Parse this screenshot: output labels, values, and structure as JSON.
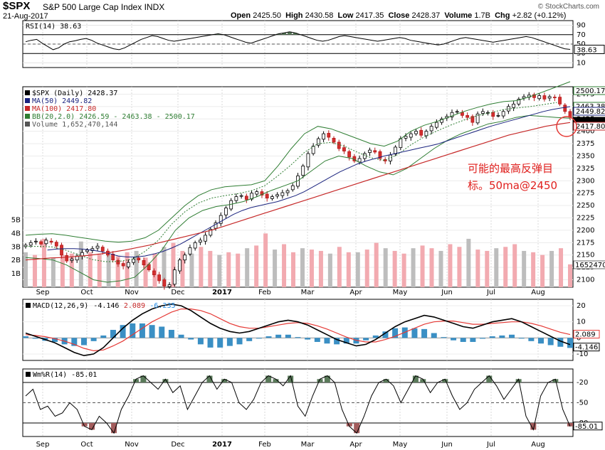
{
  "header": {
    "symbol": "$SPX",
    "name": "S&P 500 Large Cap Index",
    "exchange": "INDX",
    "date": "21-Aug-2017",
    "open_label": "Open",
    "open": "2425.50",
    "high_label": "High",
    "high": "2430.58",
    "low_label": "Low",
    "low": "2417.35",
    "close_label": "Close",
    "close": "2428.37",
    "volume_label": "Volume",
    "volume": "1.7B",
    "chg_label": "Chg",
    "chg": "+2.82 (+0.12%)",
    "logo": "© StockCharts.com"
  },
  "chart_data": [
    {
      "type": "line",
      "name": "RSI(14)",
      "title": "RSI(14) 38.63",
      "last": "38.63",
      "y_ticks": [
        "90",
        "70",
        "50",
        "30",
        "10"
      ],
      "ylim": [
        0,
        100
      ],
      "overbought": 70,
      "oversold": 30,
      "values": [
        55,
        58,
        60,
        52,
        45,
        38,
        42,
        50,
        55,
        57,
        60,
        62,
        58,
        52,
        48,
        44,
        40,
        38,
        42,
        48,
        54,
        60,
        64,
        68,
        66,
        62,
        58,
        56,
        58,
        60,
        62,
        64,
        66,
        68,
        70,
        72,
        70,
        66,
        62,
        58,
        54,
        52,
        56,
        60,
        64,
        68,
        72,
        74,
        76,
        74,
        70,
        66,
        62,
        58,
        56,
        58,
        62,
        66,
        68,
        66,
        64,
        62,
        60,
        58,
        56,
        58,
        60,
        62,
        64,
        62,
        58,
        56,
        54,
        52,
        50,
        48,
        50,
        54,
        58,
        62,
        64,
        62,
        60,
        58,
        56,
        54,
        56,
        58,
        60,
        62,
        64,
        66,
        64,
        60,
        56,
        52,
        48,
        44,
        40,
        38.63
      ]
    },
    {
      "type": "candlestick",
      "name": "$SPX (Daily)",
      "legend": [
        "$SPX (Daily) 2428.37",
        "MA(50) 2449.82",
        "MA(100) 2417.80",
        "BB(20,2.0) 2426.59 - 2463.38 - 2500.17",
        "Volume 1,652,470,144"
      ],
      "legend_colors": [
        "#000000",
        "#1a237e",
        "#c62828",
        "#2e7d32",
        "#555555"
      ],
      "x_labels": [
        "Sep",
        "Oct",
        "Nov",
        "Dec",
        "2017",
        "Feb",
        "Mar",
        "Apr",
        "May",
        "Jun",
        "Jul",
        "Aug"
      ],
      "y_ticks": [
        "2475",
        "2450",
        "2425",
        "2400",
        "2375",
        "2350",
        "2325",
        "2300",
        "2275",
        "2250",
        "2225",
        "2200",
        "2175",
        "2150",
        "2125",
        "2100"
      ],
      "ylim": [
        2085,
        2490
      ],
      "vol_ticks": [
        "5B",
        "4B",
        "3B",
        "2B",
        "1B"
      ],
      "price_tags": [
        "2500.17",
        "2463.38",
        "2449.82",
        "2428.37",
        "2417.80"
      ],
      "closes": [
        2170,
        2175,
        2178,
        2172,
        2180,
        2176,
        2168,
        2150,
        2138,
        2142,
        2148,
        2155,
        2160,
        2163,
        2168,
        2158,
        2150,
        2140,
        2132,
        2128,
        2135,
        2142,
        2140,
        2130,
        2120,
        2110,
        2098,
        2087,
        2090,
        2120,
        2140,
        2150,
        2165,
        2175,
        2180,
        2190,
        2202,
        2215,
        2230,
        2245,
        2260,
        2268,
        2270,
        2262,
        2275,
        2278,
        2271,
        2265,
        2268,
        2272,
        2276,
        2280,
        2290,
        2310,
        2330,
        2355,
        2370,
        2385,
        2395,
        2388,
        2378,
        2365,
        2360,
        2348,
        2340,
        2345,
        2355,
        2362,
        2358,
        2345,
        2340,
        2352,
        2368,
        2385,
        2390,
        2395,
        2400,
        2392,
        2400,
        2410,
        2418,
        2425,
        2430,
        2438,
        2440,
        2432,
        2428,
        2418,
        2435,
        2440,
        2438,
        2430,
        2432,
        2440,
        2450,
        2455,
        2465,
        2470,
        2473,
        2468,
        2472,
        2465,
        2470,
        2468,
        2455,
        2440,
        2428.37
      ],
      "ma50": [
        2160,
        2162,
        2163,
        2163,
        2162,
        2160,
        2157,
        2153,
        2148,
        2146,
        2146,
        2148,
        2152,
        2157,
        2164,
        2172,
        2182,
        2192,
        2202,
        2212,
        2222,
        2232,
        2240,
        2246,
        2250,
        2254,
        2258,
        2264,
        2270,
        2278,
        2288,
        2298,
        2308,
        2318,
        2326,
        2334,
        2340,
        2345,
        2350,
        2354,
        2358,
        2362,
        2366,
        2370,
        2374,
        2380,
        2386,
        2392,
        2398,
        2404,
        2410,
        2415,
        2420,
        2425,
        2430,
        2435,
        2440,
        2444,
        2447,
        2449.82
      ],
      "ma100": [
        2140,
        2142,
        2144,
        2145,
        2147,
        2149,
        2152,
        2156,
        2160,
        2165,
        2170,
        2176,
        2182,
        2188,
        2194,
        2200,
        2208,
        2216,
        2224,
        2232,
        2240,
        2248,
        2256,
        2264,
        2272,
        2280,
        2288,
        2296,
        2304,
        2312,
        2320,
        2328,
        2336,
        2344,
        2352,
        2360,
        2368,
        2376,
        2384,
        2392,
        2398,
        2404,
        2410,
        2414,
        2417.8
      ],
      "bb_upper": [
        2190,
        2192,
        2193,
        2190,
        2186,
        2182,
        2178,
        2176,
        2178,
        2185,
        2200,
        2225,
        2250,
        2270,
        2282,
        2288,
        2290,
        2292,
        2300,
        2330,
        2365,
        2395,
        2410,
        2405,
        2395,
        2385,
        2375,
        2370,
        2380,
        2400,
        2412,
        2420,
        2430,
        2440,
        2448,
        2455,
        2460,
        2462,
        2470,
        2480,
        2490,
        2500.17
      ],
      "bb_lower": [
        2145,
        2143,
        2140,
        2130,
        2115,
        2100,
        2095,
        2098,
        2105,
        2130,
        2160,
        2200,
        2225,
        2240,
        2248,
        2252,
        2258,
        2268,
        2280,
        2290,
        2300,
        2320,
        2340,
        2350,
        2345,
        2330,
        2318,
        2312,
        2325,
        2345,
        2365,
        2382,
        2395,
        2405,
        2415,
        2420,
        2428,
        2432,
        2430,
        2428,
        2426.59
      ],
      "volume_billions": [
        2.6,
        2.4,
        3.6,
        2.2,
        2.4,
        2.5,
        3.4,
        2.6,
        2.5,
        2.4,
        2.3,
        2.6,
        2.7,
        2.2,
        2.5,
        3.0,
        3.3,
        2.7,
        2.5,
        3.0,
        2.7,
        2.4,
        2.6,
        2.5,
        2.9,
        3.1,
        4.0,
        2.8,
        3.2,
        2.6,
        2.9,
        2.8,
        2.7,
        2.5,
        3.0,
        2.6,
        2.6,
        2.8,
        3.3,
        2.9,
        2.7,
        2.5,
        2.9,
        3.1,
        2.9,
        2.7,
        3.2,
        3.0,
        3.6,
        2.8,
        2.7,
        2.9,
        3.0,
        3.2,
        2.7,
        2.6,
        2.4,
        2.7,
        2.9,
        1.7
      ]
    },
    {
      "type": "line",
      "name": "MACD(12,26,9)",
      "legend": [
        "MACD(12,26,9)",
        "-4.146",
        "2.089",
        "-6.235"
      ],
      "legend_colors": [
        "#000000",
        "#000000",
        "#c62828",
        "#1e88e5"
      ],
      "y_ticks": [
        "20",
        "10",
        "0",
        "-10"
      ],
      "ylim": [
        -14,
        24
      ],
      "tags": [
        "2.089",
        "-4.146"
      ],
      "macd": [
        3,
        1,
        -1,
        -3,
        -6,
        -9,
        -11,
        -10,
        -6,
        0,
        6,
        11,
        15,
        18,
        20,
        21,
        20,
        17,
        13,
        9,
        6,
        4,
        3,
        4,
        6,
        8,
        10,
        11,
        10,
        8,
        5,
        2,
        -1,
        -3,
        -5,
        -4,
        -1,
        3,
        7,
        10,
        12,
        14,
        13,
        11,
        9,
        7,
        6,
        8,
        10,
        11,
        12,
        10,
        7,
        4,
        1,
        -2,
        -4.146
      ],
      "signal": [
        2,
        1.5,
        0.8,
        -0.5,
        -2,
        -4,
        -6.5,
        -8,
        -7.5,
        -5,
        -2,
        2,
        6,
        10,
        13,
        16,
        18,
        18,
        17,
        15,
        12,
        9,
        7,
        6,
        6,
        7,
        8,
        9,
        9.5,
        9,
        7.5,
        5.5,
        3,
        0.5,
        -1.5,
        -2.5,
        -2.5,
        -1,
        1,
        3.5,
        6,
        8.5,
        10,
        10.5,
        10.5,
        9.5,
        8.5,
        8.5,
        9,
        9.5,
        10,
        10,
        9,
        7.5,
        5.5,
        3.5,
        2.089
      ],
      "histogram": [
        1,
        -0.5,
        -1.8,
        -2.5,
        -4,
        -5,
        -4.5,
        -2,
        1.5,
        5,
        8,
        9,
        9,
        8,
        7,
        5,
        2,
        -1,
        -4,
        -6,
        -6,
        -5,
        -4,
        -2,
        0,
        1,
        2,
        2,
        0.5,
        -1,
        -2.5,
        -3.5,
        -4,
        -3.5,
        -3.5,
        -1.5,
        1.5,
        4,
        6,
        6.5,
        6,
        5.5,
        3,
        0.5,
        -1.5,
        -2.5,
        -2.5,
        -0.5,
        1,
        1.5,
        2,
        0,
        -2,
        -3.5,
        -4.5,
        -5.5,
        -6.235
      ]
    },
    {
      "type": "line",
      "name": "Wm%R(14)",
      "title": "Wm%R(14) -85.01",
      "last": "-85.01",
      "y_ticks": [
        "-20",
        "-50",
        "-80"
      ],
      "ylim": [
        -100,
        0
      ],
      "values": [
        -40,
        -30,
        -60,
        -55,
        -70,
        -65,
        -50,
        -60,
        -85,
        -90,
        -70,
        -80,
        -95,
        -60,
        -40,
        -15,
        -10,
        -20,
        -30,
        -15,
        -35,
        -25,
        -60,
        -40,
        -20,
        -10,
        -30,
        -15,
        -20,
        -50,
        -60,
        -45,
        -20,
        -10,
        -15,
        -25,
        -10,
        -55,
        -70,
        -40,
        -15,
        -10,
        -20,
        -60,
        -85,
        -95,
        -70,
        -40,
        -20,
        -15,
        -25,
        -50,
        -30,
        -10,
        -15,
        -35,
        -20,
        -15,
        -40,
        -60,
        -50,
        -30,
        -20,
        -10,
        -25,
        -45,
        -30,
        -15,
        -70,
        -90,
        -40,
        -20,
        -15,
        -60,
        -85.01
      ]
    }
  ],
  "annotation": {
    "line1": "可能的最高反弹目",
    "line2": "标。50ma@2450"
  }
}
